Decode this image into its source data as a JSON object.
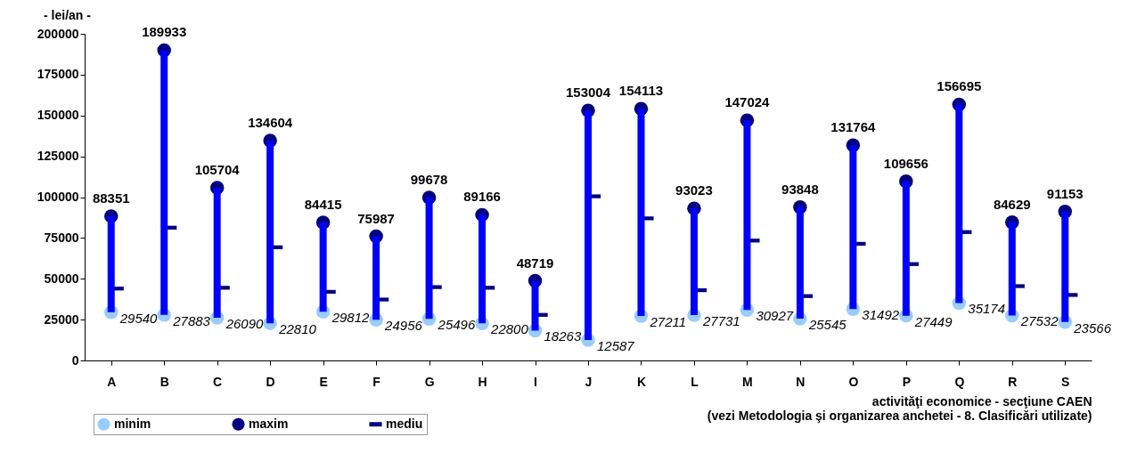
{
  "chart_data": {
    "type": "bar",
    "ylabel": "- lei/an -",
    "xlabel": "activităţi economice - secţiune CAEN\n(vezi Metodologia şi organizarea anchetei - 8. Clasificări utilizate)",
    "categories": [
      "A",
      "B",
      "C",
      "D",
      "E",
      "F",
      "G",
      "H",
      "I",
      "J",
      "K",
      "L",
      "M",
      "N",
      "O",
      "P",
      "Q",
      "R",
      "S"
    ],
    "ylim": [
      0,
      200000
    ],
    "yticks": [
      0,
      25000,
      50000,
      75000,
      100000,
      125000,
      150000,
      175000,
      200000
    ],
    "legend": "bottom left",
    "series": [
      {
        "color": "#0000ff",
        "base": [
          29540,
          27883,
          26090,
          22810,
          29812,
          24956,
          25496,
          22800,
          18263,
          12587,
          27211,
          27731,
          30927,
          25545,
          31492,
          27449,
          35174,
          27532,
          23566
        ],
        "values": [
          58811,
          162050,
          79614,
          111794,
          54603,
          51031,
          74182,
          66366,
          30456,
          140417,
          126902,
          65292,
          116097,
          68303,
          100272,
          82207,
          121521,
          57097,
          67587
        ]
      },
      {
        "type": "scatter",
        "name": "minim",
        "color": "#99ccff",
        "marker": "circle",
        "values": [
          29540,
          27883,
          26090,
          22810,
          29812,
          24956,
          25496,
          22800,
          18263,
          12587,
          27211,
          27731,
          30927,
          25545,
          31492,
          27449,
          35174,
          27532,
          23566
        ],
        "value_labels": [
          "29540",
          "27883",
          "26090",
          "22810",
          "29812",
          "24956",
          "25496",
          "22800",
          "18263",
          "12587",
          "27211",
          "27731",
          "30927",
          "25545",
          "31492",
          "27449",
          "35174",
          "27532",
          "23566"
        ]
      },
      {
        "type": "scatter",
        "name": "maxim",
        "color": "#000080",
        "marker": "circle",
        "values": [
          88351,
          189933,
          105704,
          134604,
          84415,
          75987,
          99678,
          89166,
          48719,
          153004,
          154113,
          93023,
          147024,
          93848,
          131764,
          109656,
          156695,
          84629,
          91153
        ],
        "value_labels": [
          "88351",
          "189933",
          "105704",
          "134604",
          "84415",
          "75987",
          "99678",
          "89166",
          "48719",
          "153004",
          "154113",
          "93023",
          "147024",
          "93848",
          "131764",
          "109656",
          "156695",
          "84629",
          "91153"
        ]
      },
      {
        "type": "scatter",
        "name": "mediu",
        "color": "#000080",
        "marker": "square",
        "values": [
          44000,
          81300,
          44500,
          69300,
          42000,
          37300,
          44900,
          44500,
          27900,
          100500,
          87000,
          43000,
          73400,
          39400,
          71400,
          59000,
          78600,
          45500,
          40100
        ]
      }
    ]
  }
}
